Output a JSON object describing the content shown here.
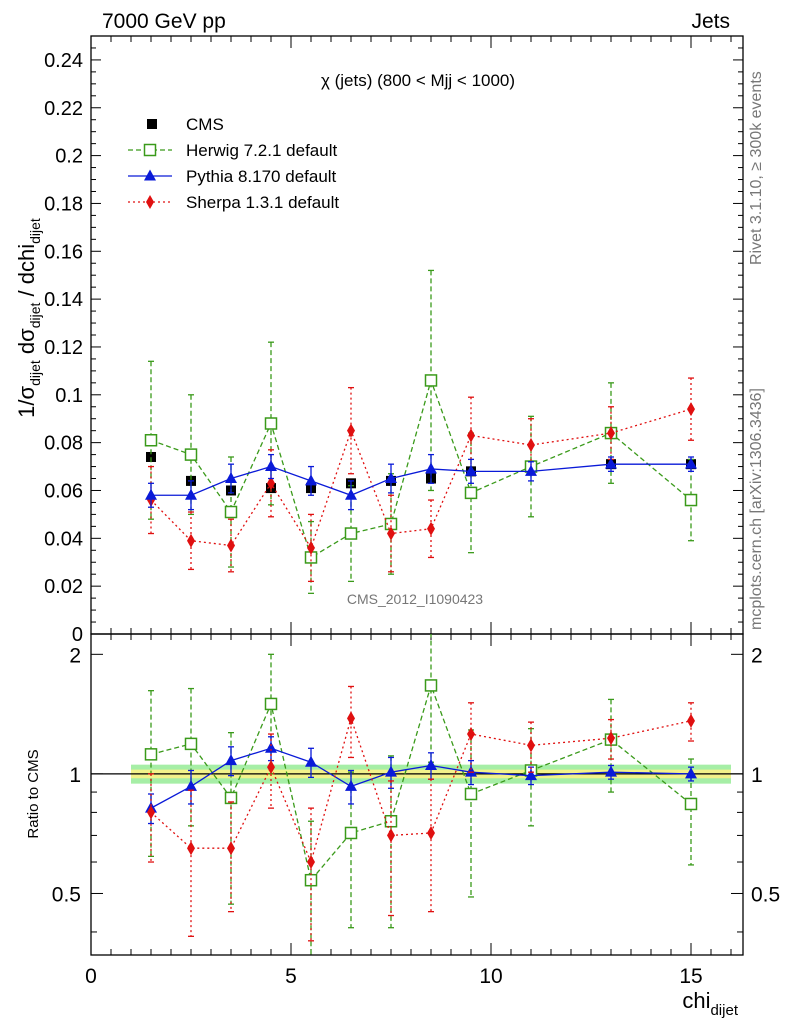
{
  "header": {
    "left": "7000 GeV pp",
    "right": "Jets"
  },
  "side_labels": {
    "rivet": "Rivet 3.1.10, ≥ 300k events",
    "mcplots": "mcplots.cern.ch [arXiv:1306.3436]"
  },
  "watermark": "CMS_2012_I1090423",
  "chart_data": [
    {
      "type": "scatter",
      "panel": "main",
      "title": "χ (jets) (800 < Mjj < 1000)",
      "ylabel": "1/σdijet dσdijet / dchidijet",
      "ylim": [
        0,
        0.25
      ],
      "yticks": [
        0,
        0.02,
        0.04,
        0.06,
        0.08,
        0.1,
        0.12,
        0.14,
        0.16,
        0.18,
        0.2,
        0.22,
        0.24
      ],
      "ytick_labels": [
        "0",
        "0.02",
        "0.04",
        "0.06",
        "0.08",
        "0.1",
        "0.12",
        "0.14",
        "0.16",
        "0.18",
        "0.2",
        "0.22",
        "0.24"
      ],
      "xlim": [
        0,
        16.3
      ],
      "legend_position": "top-left",
      "series": [
        {
          "name": "CMS",
          "color": "#000000",
          "marker": "square-filled",
          "line": "none",
          "x": [
            1.5,
            2.5,
            3.5,
            4.5,
            5.5,
            6.5,
            7.5,
            8.5,
            9.5,
            11,
            13,
            15
          ],
          "y": [
            0.074,
            0.064,
            0.06,
            0.061,
            0.061,
            0.063,
            0.064,
            0.065,
            0.068,
            0.07,
            0.071,
            0.071
          ],
          "err": [
            0.002,
            0.002,
            0.002,
            0.002,
            0.002,
            0.002,
            0.002,
            0.002,
            0.002,
            0.002,
            0.002,
            0.002
          ]
        },
        {
          "name": "Herwig 7.2.1 default",
          "color": "#3a9a1a",
          "marker": "square-open",
          "line": "dashed",
          "x": [
            1.5,
            2.5,
            3.5,
            4.5,
            5.5,
            6.5,
            7.5,
            8.5,
            9.5,
            11,
            13,
            15
          ],
          "y": [
            0.081,
            0.075,
            0.051,
            0.088,
            0.032,
            0.042,
            0.046,
            0.106,
            0.059,
            0.07,
            0.084,
            0.056
          ],
          "err": [
            0.033,
            0.025,
            0.023,
            0.034,
            0.015,
            0.02,
            0.021,
            0.046,
            0.025,
            0.021,
            0.021,
            0.017
          ]
        },
        {
          "name": "Pythia 8.170 default",
          "color": "#0a1ad8",
          "marker": "triangle-filled",
          "line": "solid",
          "x": [
            1.5,
            2.5,
            3.5,
            4.5,
            5.5,
            6.5,
            7.5,
            8.5,
            9.5,
            11,
            13,
            15
          ],
          "y": [
            0.058,
            0.058,
            0.065,
            0.07,
            0.064,
            0.058,
            0.065,
            0.069,
            0.068,
            0.068,
            0.071,
            0.071
          ],
          "err": [
            0.005,
            0.006,
            0.006,
            0.005,
            0.006,
            0.006,
            0.006,
            0.006,
            0.005,
            0.004,
            0.003,
            0.003
          ]
        },
        {
          "name": "Sherpa 1.3.1 default",
          "color": "#e01010",
          "marker": "diamond-filled",
          "line": "dotted",
          "x": [
            1.5,
            2.5,
            3.5,
            4.5,
            5.5,
            6.5,
            7.5,
            8.5,
            9.5,
            11,
            13,
            15
          ],
          "y": [
            0.056,
            0.039,
            0.037,
            0.063,
            0.036,
            0.085,
            0.042,
            0.044,
            0.083,
            0.079,
            0.084,
            0.094
          ],
          "err": [
            0.014,
            0.012,
            0.011,
            0.014,
            0.014,
            0.018,
            0.016,
            0.012,
            0.016,
            0.011,
            0.011,
            0.013
          ]
        }
      ]
    },
    {
      "type": "scatter",
      "panel": "ratio",
      "ylabel": "Ratio to CMS",
      "xlabel": "chidijet",
      "ylim": [
        0.35,
        2.25
      ],
      "yticks": [
        0.5,
        1,
        2
      ],
      "ytick_labels": [
        "0.5",
        "1",
        "2"
      ],
      "xlim": [
        0,
        16.3
      ],
      "xticks": [
        0,
        5,
        10,
        15
      ],
      "xtick_labels": [
        "0",
        "5",
        "10",
        "15"
      ],
      "band": {
        "x_range": [
          1,
          16
        ],
        "inner": 0.025,
        "outer": 0.055,
        "inner_color": "#f2f28a",
        "outer_color": "#a6eea6"
      },
      "series": [
        {
          "name": "Herwig 7.2.1 default",
          "color": "#3a9a1a",
          "marker": "square-open",
          "line": "dashed",
          "x": [
            1.5,
            2.5,
            3.5,
            4.5,
            5.5,
            6.5,
            7.5,
            8.5,
            9.5,
            11,
            13,
            15
          ],
          "y": [
            1.12,
            1.19,
            0.87,
            1.5,
            0.54,
            0.71,
            0.76,
            1.67,
            0.89,
            1.02,
            1.22,
            0.84
          ],
          "err": [
            0.5,
            0.45,
            0.4,
            0.5,
            0.22,
            0.3,
            0.35,
            0.6,
            0.4,
            0.28,
            0.32,
            0.25
          ]
        },
        {
          "name": "Pythia 8.170 default",
          "color": "#0a1ad8",
          "marker": "triangle-filled",
          "line": "solid",
          "x": [
            1.5,
            2.5,
            3.5,
            4.5,
            5.5,
            6.5,
            7.5,
            8.5,
            9.5,
            11,
            13,
            15
          ],
          "y": [
            0.82,
            0.93,
            1.08,
            1.16,
            1.07,
            0.93,
            1.01,
            1.05,
            1.01,
            0.99,
            1.01,
            1.0
          ],
          "err": [
            0.07,
            0.09,
            0.09,
            0.08,
            0.09,
            0.09,
            0.09,
            0.08,
            0.07,
            0.05,
            0.04,
            0.04
          ]
        },
        {
          "name": "Sherpa 1.3.1 default",
          "color": "#e01010",
          "marker": "diamond-filled",
          "line": "dotted",
          "x": [
            1.5,
            2.5,
            3.5,
            4.5,
            5.5,
            6.5,
            7.5,
            8.5,
            9.5,
            11,
            13,
            15
          ],
          "y": [
            0.8,
            0.65,
            0.65,
            1.04,
            0.6,
            1.38,
            0.7,
            0.71,
            1.26,
            1.18,
            1.23,
            1.36
          ],
          "err": [
            0.2,
            0.26,
            0.2,
            0.22,
            0.22,
            0.28,
            0.26,
            0.26,
            0.25,
            0.17,
            0.14,
            0.15
          ]
        }
      ]
    }
  ]
}
